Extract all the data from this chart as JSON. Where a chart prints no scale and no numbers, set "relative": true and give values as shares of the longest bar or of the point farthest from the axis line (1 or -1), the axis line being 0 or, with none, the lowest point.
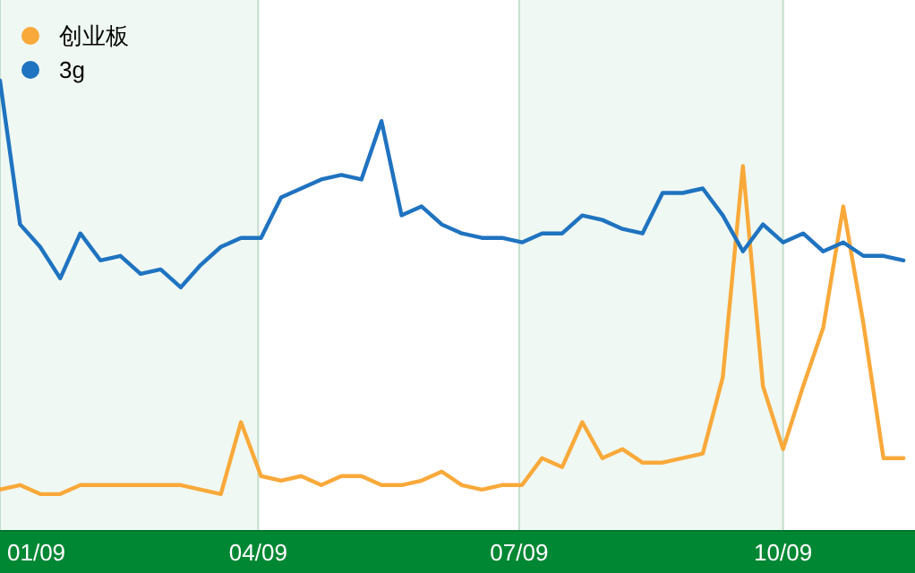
{
  "chart_data": {
    "type": "line",
    "relative": true,
    "x": [
      "2009-01-01",
      "2009-01-08",
      "2009-01-15",
      "2009-01-22",
      "2009-01-29",
      "2009-02-05",
      "2009-02-12",
      "2009-02-19",
      "2009-02-26",
      "2009-03-05",
      "2009-03-12",
      "2009-03-19",
      "2009-03-26",
      "2009-04-02",
      "2009-04-09",
      "2009-04-16",
      "2009-04-23",
      "2009-04-30",
      "2009-05-07",
      "2009-05-14",
      "2009-05-21",
      "2009-05-28",
      "2009-06-04",
      "2009-06-11",
      "2009-06-18",
      "2009-06-25",
      "2009-07-02",
      "2009-07-09",
      "2009-07-16",
      "2009-07-23",
      "2009-07-30",
      "2009-08-06",
      "2009-08-13",
      "2009-08-20",
      "2009-08-27",
      "2009-09-03",
      "2009-09-10",
      "2009-09-17",
      "2009-09-24",
      "2009-10-01",
      "2009-10-08",
      "2009-10-15",
      "2009-10-22",
      "2009-10-29",
      "2009-11-05",
      "2009-11-12"
    ],
    "xticks": [
      {
        "value": "2009-01-01",
        "label": "01/09"
      },
      {
        "value": "2009-04-01",
        "label": "04/09"
      },
      {
        "value": "2009-07-01",
        "label": "07/09"
      },
      {
        "value": "2009-10-01",
        "label": "10/09"
      }
    ],
    "xlim": [
      "2009-01-01",
      "2009-11-16"
    ],
    "grid": "x",
    "legend": "top left",
    "marker": "none",
    "line_style": "solid",
    "bands": [
      {
        "axis": "x",
        "from": "2009-01-01",
        "to": "2009-04-01",
        "color": "#eff8f2"
      },
      {
        "axis": "x",
        "from": "2009-07-01",
        "to": "2009-10-01",
        "color": "#eff8f2"
      }
    ],
    "series": [
      {
        "name": "创业板",
        "color": "#f9a93a",
        "values": [
          0.09,
          0.1,
          0.08,
          0.08,
          0.1,
          0.1,
          0.1,
          0.1,
          0.1,
          0.1,
          0.09,
          0.08,
          0.24,
          0.12,
          0.11,
          0.12,
          0.1,
          0.12,
          0.12,
          0.1,
          0.1,
          0.11,
          0.13,
          0.1,
          0.09,
          0.1,
          0.1,
          0.16,
          0.14,
          0.24,
          0.16,
          0.18,
          0.15,
          0.15,
          0.16,
          0.17,
          0.34,
          0.81,
          0.32,
          0.18,
          0.32,
          0.45,
          0.72,
          0.46,
          0.16,
          0.16
        ]
      },
      {
        "name": "3g",
        "color": "#1f73c0",
        "values": [
          1.0,
          0.68,
          0.63,
          0.56,
          0.66,
          0.6,
          0.61,
          0.57,
          0.58,
          0.54,
          0.59,
          0.63,
          0.65,
          0.65,
          0.74,
          0.76,
          0.78,
          0.79,
          0.78,
          0.91,
          0.7,
          0.72,
          0.68,
          0.66,
          0.65,
          0.65,
          0.64,
          0.66,
          0.66,
          0.7,
          0.69,
          0.67,
          0.66,
          0.75,
          0.75,
          0.76,
          0.7,
          0.62,
          0.68,
          0.64,
          0.66,
          0.62,
          0.64,
          0.61,
          0.61,
          0.6
        ]
      }
    ]
  }
}
